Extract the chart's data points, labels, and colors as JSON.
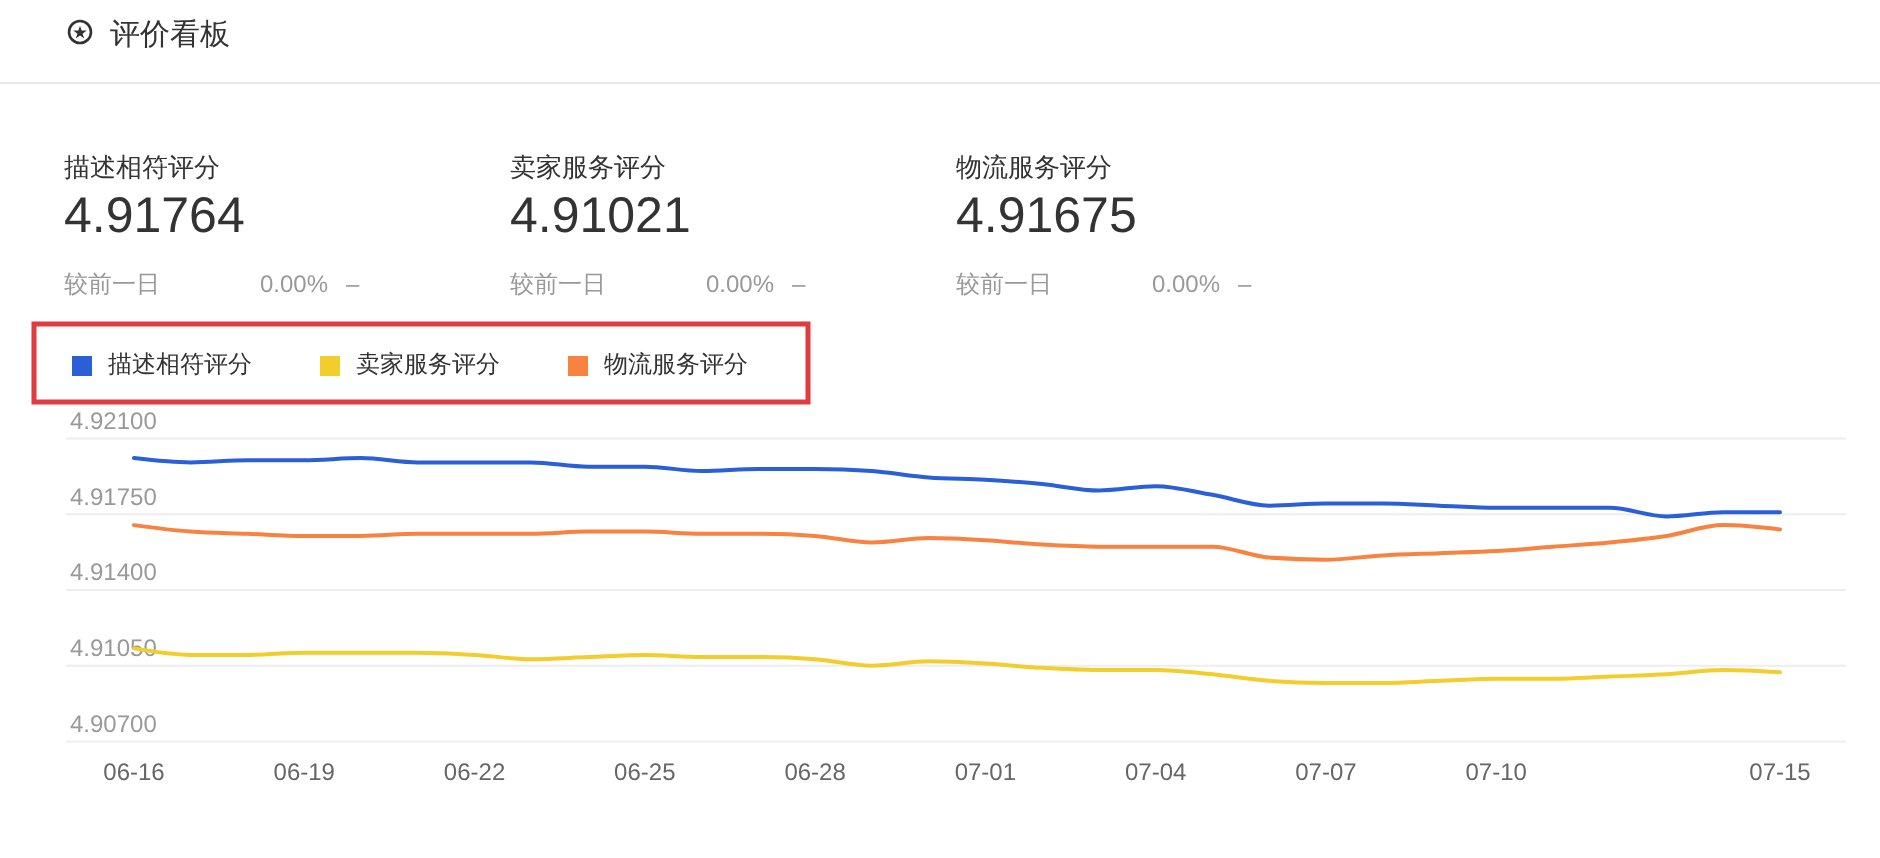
{
  "chart_data": {
    "type": "line",
    "title": "评价看板",
    "annotations": [
      "描述相符评分",
      "4.91764",
      "较前一日",
      "0.00%",
      "–",
      "卖家服务评分",
      "4.91021",
      "较前一日",
      "0.00%",
      "–",
      "物流服务评分",
      "4.91675",
      "较前一日",
      "0.00%",
      "–"
    ],
    "categories": [
      "06-16",
      null,
      null,
      "06-19",
      null,
      null,
      "06-22",
      null,
      null,
      "06-25",
      null,
      null,
      "06-28",
      null,
      null,
      "07-01",
      null,
      null,
      "07-04",
      null,
      null,
      "07-07",
      null,
      null,
      "07-10",
      null,
      null,
      null,
      null,
      "07-15"
    ],
    "series": [
      {
        "name": "描述相符评分",
        "color": "#2a5fd8",
        "values": [
          4.9201,
          4.9199,
          4.92,
          4.92,
          4.9201,
          4.9199,
          4.9199,
          4.9199,
          4.9197,
          4.9197,
          4.9195,
          4.9196,
          4.9196,
          4.9195,
          4.9192,
          4.9191,
          4.9189,
          4.9186,
          4.9188,
          4.9184,
          4.9179,
          4.918,
          4.918,
          4.9179,
          4.9178,
          4.9178,
          4.9178,
          4.9174,
          4.9176,
          4.9176
        ]
      },
      {
        "name": "卖家服务评分",
        "color": "#f3cd2b",
        "values": [
          4.9113,
          4.911,
          4.911,
          4.9111,
          4.9111,
          4.9111,
          4.911,
          4.9108,
          4.9109,
          4.911,
          4.9109,
          4.9109,
          4.9108,
          4.9105,
          4.9107,
          4.9106,
          4.9104,
          4.9103,
          4.9103,
          4.9101,
          4.9098,
          4.9097,
          4.9097,
          4.9098,
          4.9099,
          4.9099,
          4.91,
          4.9101,
          4.9103,
          4.9102
        ]
      },
      {
        "name": "物流服务评分",
        "color": "#f8823f",
        "values": [
          4.917,
          4.9167,
          4.9166,
          4.9165,
          4.9165,
          4.9166,
          4.9166,
          4.9166,
          4.9167,
          4.9167,
          4.9166,
          4.9166,
          4.9165,
          4.9162,
          4.9164,
          4.9163,
          4.9161,
          4.916,
          4.916,
          4.916,
          4.9155,
          4.9154,
          4.9156,
          4.9157,
          4.9158,
          4.916,
          4.9162,
          4.9165,
          4.917,
          4.9168
        ]
      }
    ],
    "ylim": [
      4.907,
      4.921
    ],
    "yticks": [
      {
        "value": 4.907,
        "label": "4.90700"
      },
      {
        "value": 4.9105,
        "label": "4.91050"
      },
      {
        "value": 4.914,
        "label": "4.91400"
      },
      {
        "value": 4.9175,
        "label": "4.91750"
      },
      {
        "value": 4.921,
        "label": "4.92100"
      }
    ],
    "grid": "y",
    "legend": "top left",
    "marker": "none",
    "line_style": "solid"
  }
}
